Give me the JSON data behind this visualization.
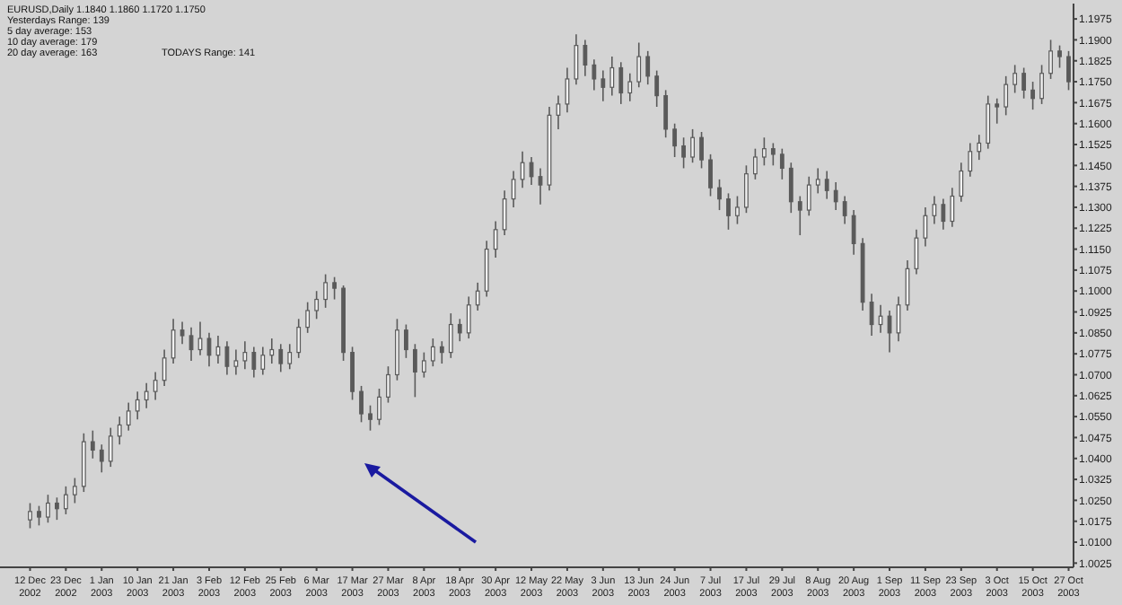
{
  "chart_data": {
    "type": "candlestick",
    "title": "EURUSD,Daily 1.1840 1.1860 1.1720 1.1750",
    "annotations": [
      "Yesterdays Range: 139",
      "5 day average: 153",
      "10 day average: 179",
      "20 day average: 163",
      "TODAYS Range: 141"
    ],
    "color": "#5a5a5a",
    "categories": [
      "12 Dec 2002",
      null,
      null,
      null,
      "23 Dec 2002",
      null,
      null,
      null,
      "1 Jan 2003",
      null,
      null,
      null,
      "10 Jan 2003",
      null,
      null,
      null,
      "21 Jan 2003",
      null,
      null,
      null,
      "3 Feb 2003",
      null,
      null,
      null,
      "12 Feb 2003",
      null,
      null,
      null,
      "25 Feb 2003",
      null,
      null,
      null,
      "6 Mar 2003",
      null,
      null,
      null,
      "17 Mar 2003",
      null,
      null,
      null,
      "27 Mar 2003",
      null,
      null,
      null,
      "8 Apr 2003",
      null,
      null,
      null,
      "18 Apr 2003",
      null,
      null,
      null,
      "30 Apr 2003",
      null,
      null,
      null,
      "12 May 2003",
      null,
      null,
      null,
      "22 May 2003",
      null,
      null,
      null,
      "3 Jun 2003",
      null,
      null,
      null,
      "13 Jun 2003",
      null,
      null,
      null,
      "24 Jun 2003",
      null,
      null,
      null,
      "7 Jul 2003",
      null,
      null,
      null,
      "17 Jul 2003",
      null,
      null,
      null,
      "29 Jul 2003",
      null,
      null,
      null,
      "8 Aug 2003",
      null,
      null,
      null,
      "20 Aug 2003",
      null,
      null,
      null,
      "1 Sep 2003",
      null,
      null,
      null,
      "11 Sep 2003",
      null,
      null,
      null,
      "23 Sep 2003",
      null,
      null,
      null,
      "3 Oct 2003",
      null,
      null,
      null,
      "15 Oct 2003",
      null,
      null,
      null,
      "27 Oct 2003"
    ],
    "ohlc": [
      [
        1.018,
        1.024,
        1.015,
        1.021
      ],
      [
        1.021,
        1.023,
        1.016,
        1.019
      ],
      [
        1.019,
        1.027,
        1.017,
        1.024
      ],
      [
        1.024,
        1.026,
        1.018,
        1.022
      ],
      [
        1.022,
        1.03,
        1.02,
        1.027
      ],
      [
        1.027,
        1.033,
        1.024,
        1.03
      ],
      [
        1.03,
        1.049,
        1.028,
        1.046
      ],
      [
        1.046,
        1.05,
        1.04,
        1.043
      ],
      [
        1.043,
        1.045,
        1.035,
        1.039
      ],
      [
        1.039,
        1.051,
        1.037,
        1.048
      ],
      [
        1.048,
        1.055,
        1.045,
        1.052
      ],
      [
        1.052,
        1.06,
        1.05,
        1.057
      ],
      [
        1.057,
        1.064,
        1.054,
        1.061
      ],
      [
        1.061,
        1.067,
        1.058,
        1.064
      ],
      [
        1.064,
        1.071,
        1.061,
        1.068
      ],
      [
        1.068,
        1.079,
        1.066,
        1.076
      ],
      [
        1.076,
        1.09,
        1.074,
        1.086
      ],
      [
        1.086,
        1.089,
        1.081,
        1.084
      ],
      [
        1.084,
        1.087,
        1.075,
        1.079
      ],
      [
        1.079,
        1.089,
        1.077,
        1.083
      ],
      [
        1.083,
        1.085,
        1.073,
        1.077
      ],
      [
        1.077,
        1.084,
        1.074,
        1.08
      ],
      [
        1.08,
        1.082,
        1.07,
        1.073
      ],
      [
        1.073,
        1.079,
        1.07,
        1.075
      ],
      [
        1.075,
        1.082,
        1.072,
        1.078
      ],
      [
        1.078,
        1.08,
        1.069,
        1.072
      ],
      [
        1.072,
        1.08,
        1.07,
        1.077
      ],
      [
        1.077,
        1.083,
        1.074,
        1.079
      ],
      [
        1.079,
        1.081,
        1.071,
        1.074
      ],
      [
        1.074,
        1.081,
        1.072,
        1.078
      ],
      [
        1.078,
        1.09,
        1.076,
        1.087
      ],
      [
        1.087,
        1.096,
        1.085,
        1.093
      ],
      [
        1.093,
        1.1,
        1.09,
        1.097
      ],
      [
        1.097,
        1.106,
        1.094,
        1.103
      ],
      [
        1.103,
        1.105,
        1.097,
        1.101
      ],
      [
        1.101,
        1.102,
        1.075,
        1.078
      ],
      [
        1.078,
        1.08,
        1.061,
        1.064
      ],
      [
        1.064,
        1.066,
        1.053,
        1.056
      ],
      [
        1.056,
        1.059,
        1.05,
        1.054
      ],
      [
        1.054,
        1.065,
        1.052,
        1.062
      ],
      [
        1.062,
        1.073,
        1.06,
        1.07
      ],
      [
        1.07,
        1.09,
        1.068,
        1.086
      ],
      [
        1.086,
        1.088,
        1.076,
        1.079
      ],
      [
        1.079,
        1.081,
        1.062,
        1.071
      ],
      [
        1.071,
        1.078,
        1.069,
        1.075
      ],
      [
        1.075,
        1.083,
        1.073,
        1.08
      ],
      [
        1.08,
        1.082,
        1.074,
        1.078
      ],
      [
        1.078,
        1.092,
        1.076,
        1.088
      ],
      [
        1.088,
        1.09,
        1.082,
        1.085
      ],
      [
        1.085,
        1.098,
        1.083,
        1.095
      ],
      [
        1.095,
        1.103,
        1.093,
        1.1
      ],
      [
        1.1,
        1.118,
        1.098,
        1.115
      ],
      [
        1.115,
        1.125,
        1.112,
        1.122
      ],
      [
        1.122,
        1.136,
        1.12,
        1.133
      ],
      [
        1.133,
        1.143,
        1.13,
        1.14
      ],
      [
        1.14,
        1.15,
        1.137,
        1.146
      ],
      [
        1.146,
        1.148,
        1.138,
        1.141
      ],
      [
        1.141,
        1.144,
        1.131,
        1.138
      ],
      [
        1.138,
        1.166,
        1.136,
        1.163
      ],
      [
        1.163,
        1.17,
        1.158,
        1.167
      ],
      [
        1.167,
        1.18,
        1.164,
        1.176
      ],
      [
        1.176,
        1.192,
        1.174,
        1.188
      ],
      [
        1.188,
        1.19,
        1.177,
        1.181
      ],
      [
        1.181,
        1.183,
        1.172,
        1.176
      ],
      [
        1.176,
        1.179,
        1.168,
        1.173
      ],
      [
        1.173,
        1.184,
        1.17,
        1.18
      ],
      [
        1.18,
        1.182,
        1.167,
        1.171
      ],
      [
        1.171,
        1.178,
        1.168,
        1.175
      ],
      [
        1.175,
        1.189,
        1.173,
        1.184
      ],
      [
        1.184,
        1.186,
        1.174,
        1.177
      ],
      [
        1.177,
        1.179,
        1.166,
        1.17
      ],
      [
        1.17,
        1.172,
        1.155,
        1.158
      ],
      [
        1.158,
        1.16,
        1.148,
        1.152
      ],
      [
        1.152,
        1.155,
        1.144,
        1.148
      ],
      [
        1.148,
        1.158,
        1.146,
        1.155
      ],
      [
        1.155,
        1.157,
        1.144,
        1.147
      ],
      [
        1.147,
        1.149,
        1.134,
        1.137
      ],
      [
        1.137,
        1.14,
        1.129,
        1.133
      ],
      [
        1.133,
        1.135,
        1.122,
        1.127
      ],
      [
        1.127,
        1.134,
        1.124,
        1.13
      ],
      [
        1.13,
        1.145,
        1.128,
        1.142
      ],
      [
        1.142,
        1.151,
        1.14,
        1.148
      ],
      [
        1.148,
        1.155,
        1.145,
        1.151
      ],
      [
        1.151,
        1.153,
        1.145,
        1.149
      ],
      [
        1.149,
        1.151,
        1.14,
        1.144
      ],
      [
        1.144,
        1.146,
        1.128,
        1.132
      ],
      [
        1.132,
        1.134,
        1.12,
        1.129
      ],
      [
        1.129,
        1.141,
        1.127,
        1.138
      ],
      [
        1.138,
        1.144,
        1.135,
        1.14
      ],
      [
        1.14,
        1.143,
        1.133,
        1.136
      ],
      [
        1.136,
        1.139,
        1.129,
        1.132
      ],
      [
        1.132,
        1.134,
        1.124,
        1.127
      ],
      [
        1.127,
        1.129,
        1.113,
        1.117
      ],
      [
        1.117,
        1.119,
        1.093,
        1.096
      ],
      [
        1.096,
        1.099,
        1.084,
        1.088
      ],
      [
        1.088,
        1.095,
        1.085,
        1.091
      ],
      [
        1.091,
        1.093,
        1.078,
        1.085
      ],
      [
        1.085,
        1.098,
        1.082,
        1.095
      ],
      [
        1.095,
        1.111,
        1.093,
        1.108
      ],
      [
        1.108,
        1.122,
        1.106,
        1.119
      ],
      [
        1.119,
        1.13,
        1.116,
        1.127
      ],
      [
        1.127,
        1.134,
        1.124,
        1.131
      ],
      [
        1.131,
        1.133,
        1.122,
        1.125
      ],
      [
        1.125,
        1.137,
        1.123,
        1.134
      ],
      [
        1.134,
        1.146,
        1.132,
        1.143
      ],
      [
        1.143,
        1.153,
        1.141,
        1.15
      ],
      [
        1.15,
        1.156,
        1.147,
        1.153
      ],
      [
        1.153,
        1.17,
        1.151,
        1.167
      ],
      [
        1.167,
        1.169,
        1.16,
        1.166
      ],
      [
        1.166,
        1.177,
        1.163,
        1.174
      ],
      [
        1.174,
        1.181,
        1.171,
        1.178
      ],
      [
        1.178,
        1.18,
        1.169,
        1.172
      ],
      [
        1.172,
        1.175,
        1.165,
        1.169
      ],
      [
        1.169,
        1.181,
        1.167,
        1.178
      ],
      [
        1.178,
        1.19,
        1.176,
        1.186
      ],
      [
        1.186,
        1.188,
        1.18,
        1.184
      ],
      [
        1.184,
        1.186,
        1.172,
        1.175
      ]
    ],
    "ylim": [
      1.001,
      1.203
    ],
    "yticks": [
      1.0025,
      {
        "value": 1.01,
        "label": "1.0100"
      },
      1.0175,
      {
        "value": 1.025,
        "label": "1.0250"
      },
      1.0325,
      {
        "value": 1.04,
        "label": "1.0400"
      },
      1.0475,
      {
        "value": 1.055,
        "label": "1.0550"
      },
      1.0625,
      {
        "value": 1.07,
        "label": "1.0700"
      },
      1.0775,
      {
        "value": 1.085,
        "label": "1.0850"
      },
      1.0925,
      {
        "value": 1.1,
        "label": "1.1000"
      },
      1.1075,
      {
        "value": 1.115,
        "label": "1.1150"
      },
      1.1225,
      {
        "value": 1.13,
        "label": "1.1300"
      },
      1.1375,
      {
        "value": 1.145,
        "label": "1.1450"
      },
      1.1525,
      {
        "value": 1.16,
        "label": "1.1600"
      },
      1.1675,
      {
        "value": 1.175,
        "label": "1.1750"
      },
      1.1825,
      {
        "value": 1.19,
        "label": "1.1900"
      },
      1.1975
    ]
  }
}
